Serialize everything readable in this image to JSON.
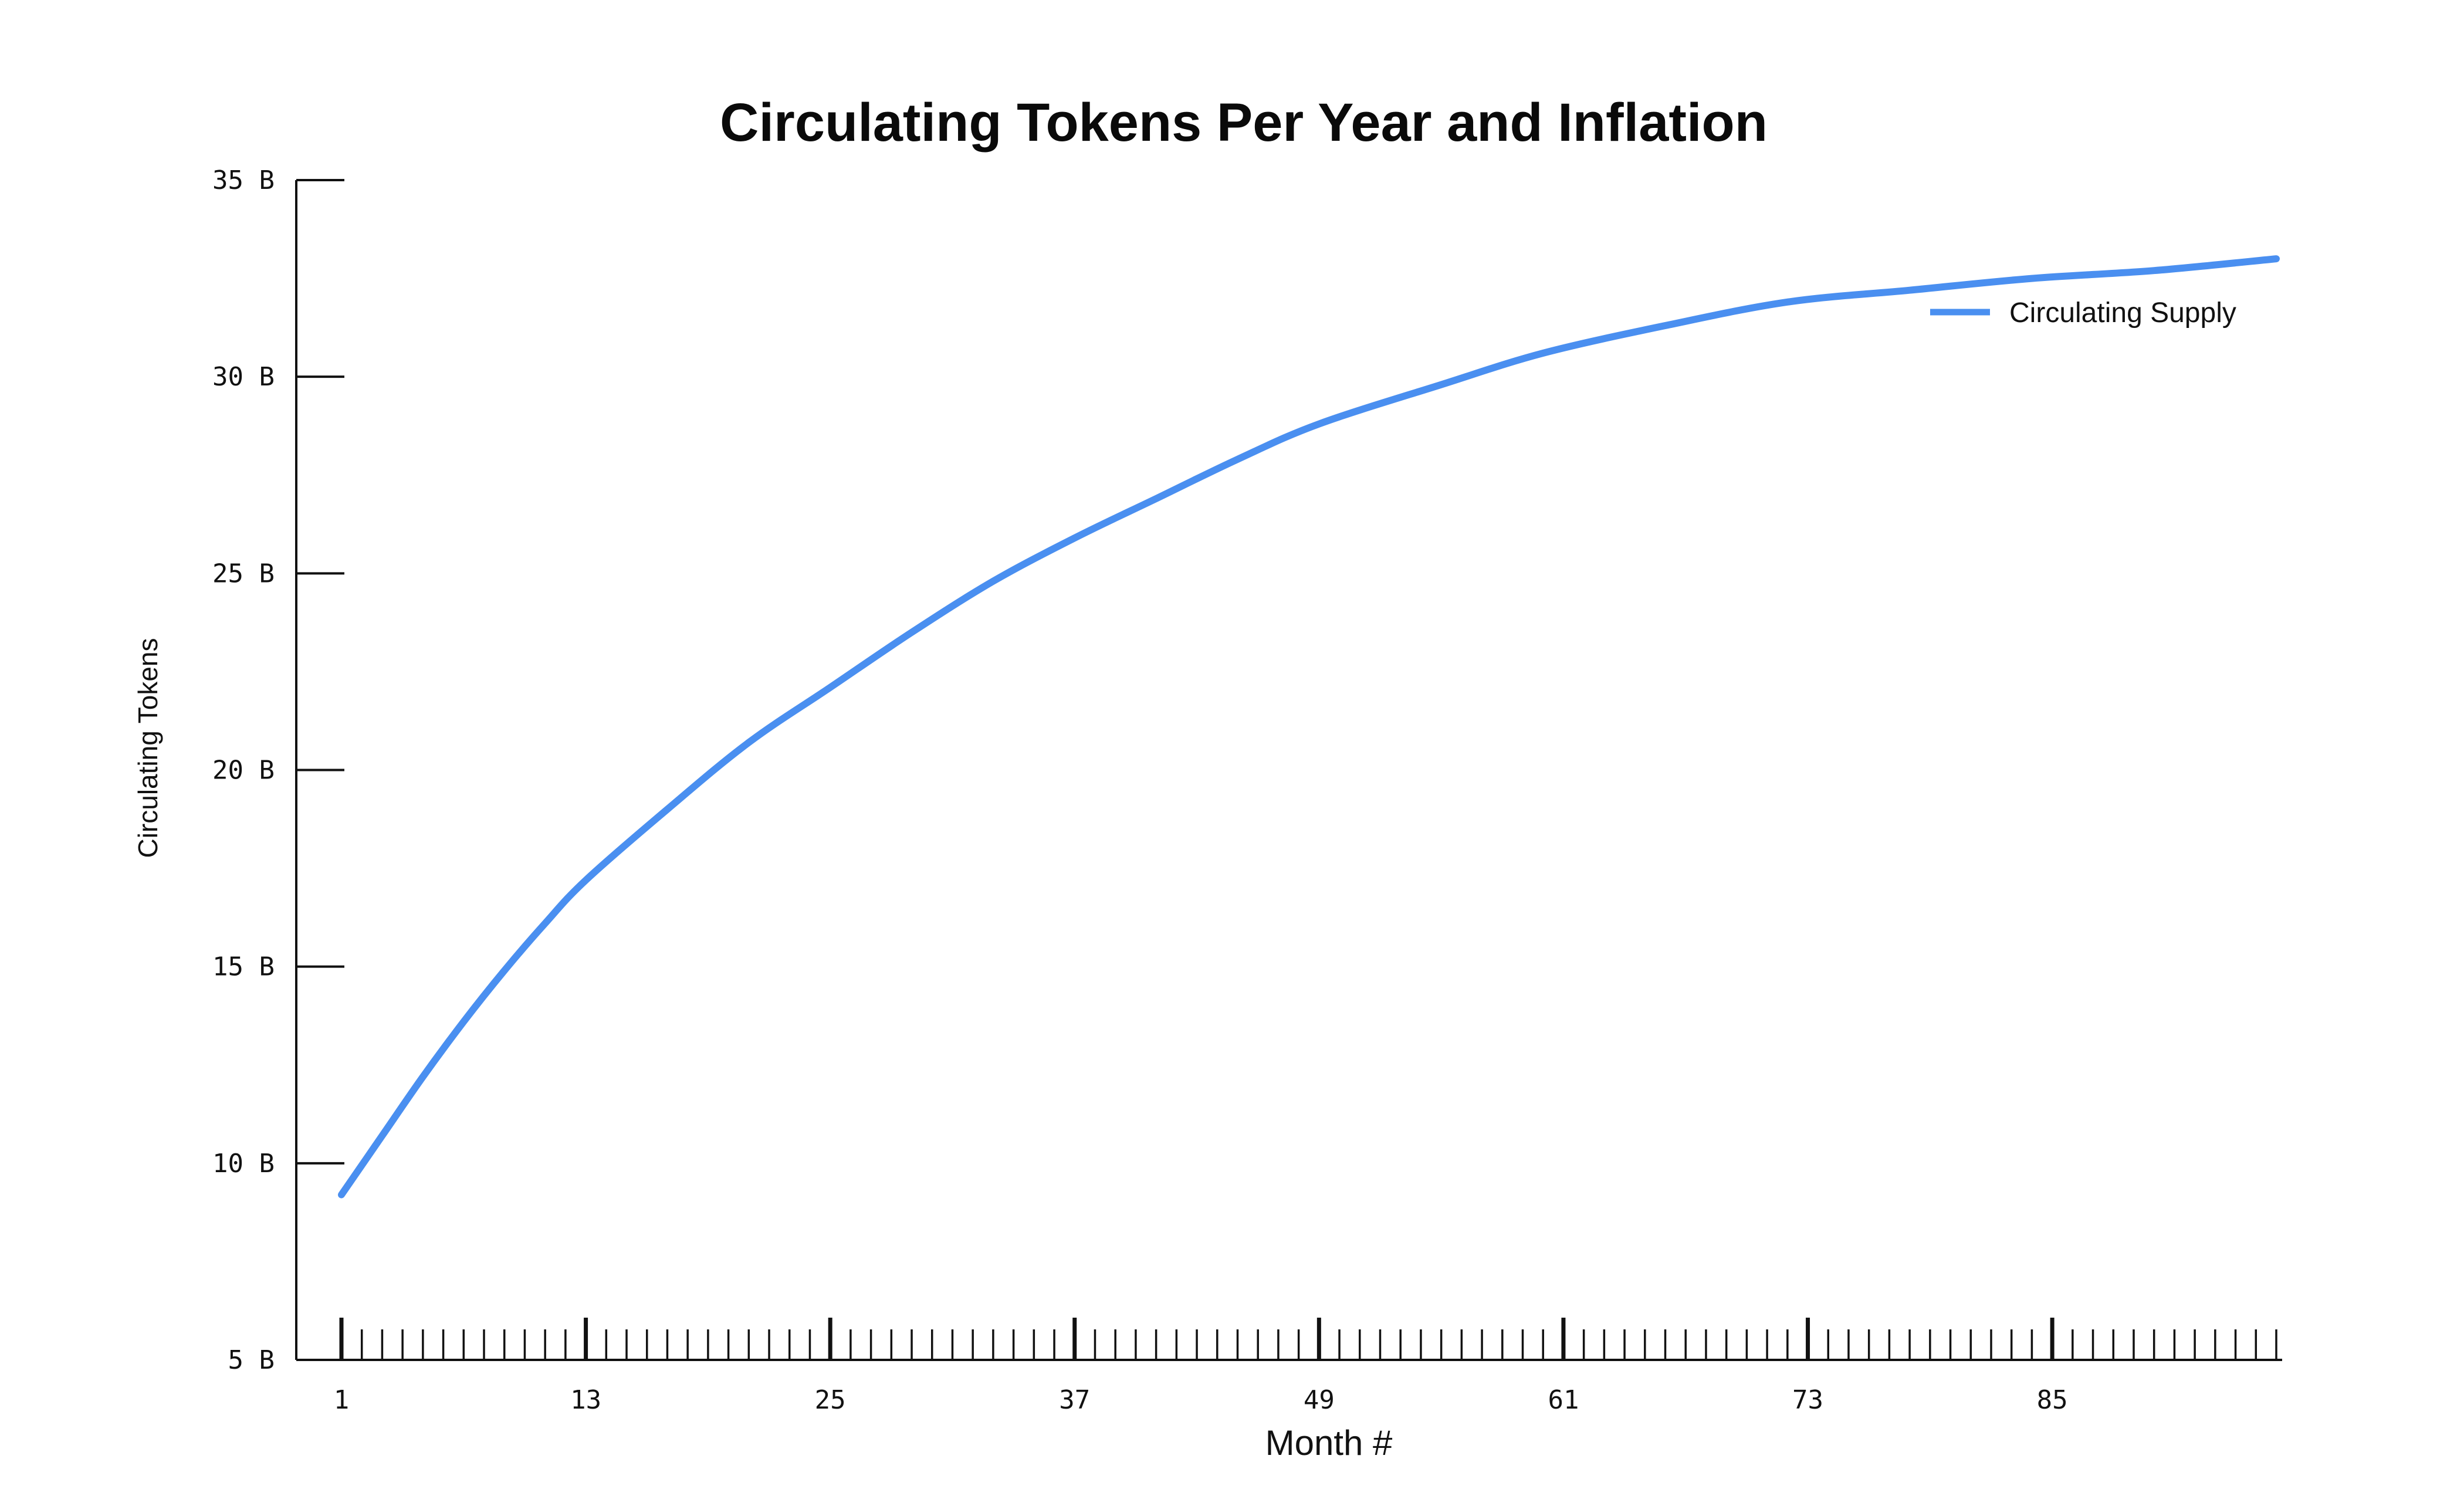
{
  "chart_data": {
    "type": "line",
    "title": "Circulating Tokens Per Year and Inflation",
    "xlabel": "Month #",
    "ylabel": "Circulating Tokens",
    "xlim": [
      1,
      96
    ],
    "ylim": [
      5,
      35
    ],
    "x_tick_labels": [
      "1",
      "13",
      "25",
      "37",
      "49",
      "61",
      "73",
      "85"
    ],
    "x_tick_values": [
      1,
      13,
      25,
      37,
      49,
      61,
      73,
      85
    ],
    "y_tick_labels": [
      "35 B",
      "30 B",
      "25 B",
      "20 B",
      "15 B",
      "10 B",
      "5 B"
    ],
    "y_tick_values": [
      35,
      30,
      25,
      20,
      15,
      10,
      5
    ],
    "x_minor_step": 1,
    "grid": false,
    "legend": {
      "position": "top-right"
    },
    "series": [
      {
        "name": "Circulating Supply",
        "color": "#4a8ff0",
        "x": [
          1,
          3,
          5,
          7,
          9,
          11,
          13,
          17,
          21,
          25,
          29,
          33,
          37,
          41,
          45,
          49,
          55,
          60,
          66,
          72,
          78,
          84,
          90,
          96
        ],
        "values": [
          9.2,
          10.7,
          12.2,
          13.6,
          14.9,
          16.1,
          17.2,
          19.0,
          20.7,
          22.1,
          23.5,
          24.8,
          25.9,
          26.9,
          27.9,
          28.8,
          29.8,
          30.6,
          31.3,
          31.9,
          32.2,
          32.5,
          32.7,
          33.0
        ]
      }
    ]
  }
}
